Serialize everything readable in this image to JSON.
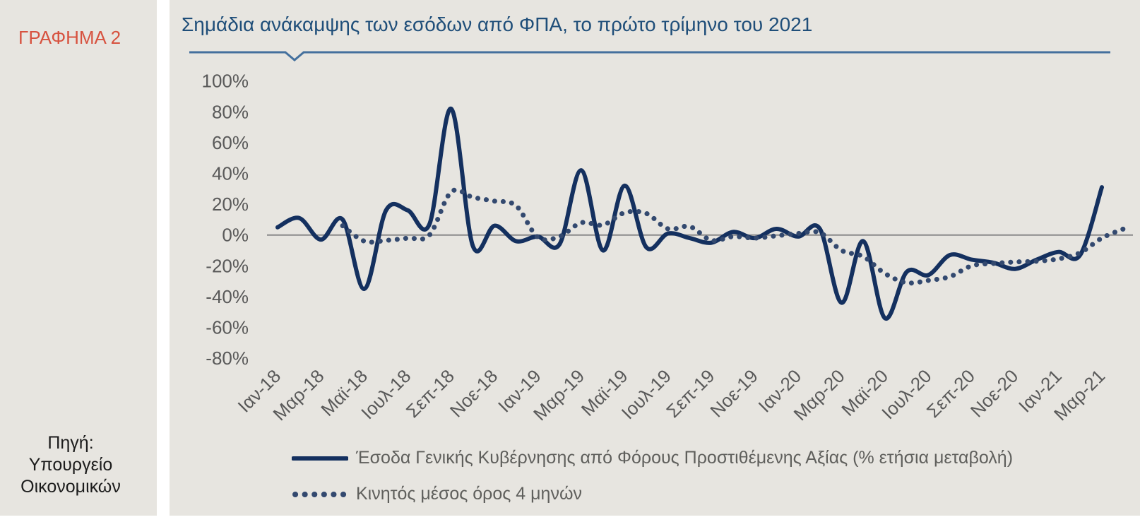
{
  "sidebar": {
    "figure_label": "ΓΡΑΦΗΜΑ 2",
    "source_lines": [
      "Πηγή:",
      "Υπουργείο",
      "Οικονομικών"
    ]
  },
  "header": {
    "title": "Σημάδια ανάκαμψης των εσόδων από ΦΠΑ, το πρώτο τρίμηνο του 2021"
  },
  "legend": {
    "items": [
      {
        "swatch": "solid-line",
        "label": "Έσοδα Γενικής Κυβέρνησης από Φόρους Προστιθέμενης Αξίας (% ετήσια μεταβολή)"
      },
      {
        "swatch": "dotted-line",
        "label": "Κινητός μέσος όρος 4 μηνών"
      }
    ]
  },
  "colors": {
    "background": "#e7e5e0",
    "title_text": "#1f4e79",
    "figure_label_text": "#d7523f",
    "rule_line": "#44709d",
    "axis_text": "#595959",
    "legend_text": "#5f5f5c",
    "zero_line": "#8a8a8a",
    "series_solid": "#14305f",
    "series_dotted": "#33496f"
  },
  "chart_data": {
    "type": "line",
    "title": "Σημάδια ανάκαμψης των εσόδων από ΦΠΑ, το πρώτο τρίμηνο του 2021",
    "xlabel": "",
    "ylabel": "",
    "y_unit": "%",
    "ylim": [
      -80,
      100
    ],
    "y_tick_values": [
      100,
      80,
      60,
      40,
      20,
      0,
      -20,
      -40,
      -60,
      -80
    ],
    "y_tick_labels": [
      "100%",
      "80%",
      "60%",
      "40%",
      "20%",
      "0%",
      "-20%",
      "-40%",
      "-60%",
      "-80%"
    ],
    "grid": "none",
    "zero_axis_line": true,
    "legend_position": "bottom-left",
    "x": [
      "Ιαν-18",
      "Φεβ-18",
      "Μαρ-18",
      "Απρ-18",
      "Μαϊ-18",
      "Ιουν-18",
      "Ιουλ-18",
      "Αυγ-18",
      "Σεπ-18",
      "Οκτ-18",
      "Νοε-18",
      "Δεκ-18",
      "Ιαν-19",
      "Φεβ-19",
      "Μαρ-19",
      "Απρ-19",
      "Μαϊ-19",
      "Ιουν-19",
      "Ιουλ-19",
      "Αυγ-19",
      "Σεπ-19",
      "Οκτ-19",
      "Νοε-19",
      "Δεκ-19",
      "Ιαν-20",
      "Φεβ-20",
      "Μαρ-20",
      "Απρ-20",
      "Μαϊ-20",
      "Ιουν-20",
      "Ιουλ-20",
      "Αυγ-20",
      "Σεπ-20",
      "Οκτ-20",
      "Νοε-20",
      "Δεκ-20",
      "Ιαν-21",
      "Φεβ-21",
      "Μαρ-21",
      "Απρ-21"
    ],
    "x_tick_labels": [
      "Ιαν-18",
      "Μαρ-18",
      "Μαϊ-18",
      "Ιουλ-18",
      "Σεπ-18",
      "Νοε-18",
      "Ιαν-19",
      "Μαρ-19",
      "Μαϊ-19",
      "Ιουλ-19",
      "Σεπ-19",
      "Νοε-19",
      "Ιαν-20",
      "Μαρ-20",
      "Μαϊ-20",
      "Ιουλ-20",
      "Σεπ-20",
      "Νοε-20",
      "Ιαν-21",
      "Μαρ-21"
    ],
    "x_tick_every_n_months": 2,
    "series": [
      {
        "name": "Έσοδα Γενικής Κυβέρνησης από Φόρους Προστιθέμενης Αξίας (% ετήσια μεταβολή)",
        "style": "solid",
        "color": "#14305f",
        "values": [
          5,
          11,
          -3,
          10,
          -35,
          16,
          16,
          7,
          82,
          -7,
          6,
          -4,
          -1,
          -6,
          42,
          -10,
          32,
          -8,
          1,
          -2,
          -5,
          2,
          -2,
          4,
          -1,
          4,
          -44,
          -4,
          -54,
          -24,
          -26,
          -13,
          -16,
          -18,
          -22,
          -16,
          -11,
          -13,
          31,
          null
        ]
      },
      {
        "name": "Κινητός μέσος όρος 4 μηνών",
        "style": "dotted",
        "color": "#33496f",
        "values": [
          null,
          null,
          null,
          6,
          -4,
          -3.5,
          -2,
          0,
          28,
          24.5,
          22,
          19,
          -1.5,
          -1,
          8,
          6.5,
          14.5,
          14,
          4,
          5.5,
          -3.5,
          -1,
          -2,
          -0.5,
          1,
          1.5,
          -10,
          -14,
          -25,
          -31,
          -29.5,
          -27,
          -20,
          -18.5,
          -17.5,
          -17,
          -15.5,
          -11.5,
          -2,
          4
        ]
      }
    ]
  }
}
